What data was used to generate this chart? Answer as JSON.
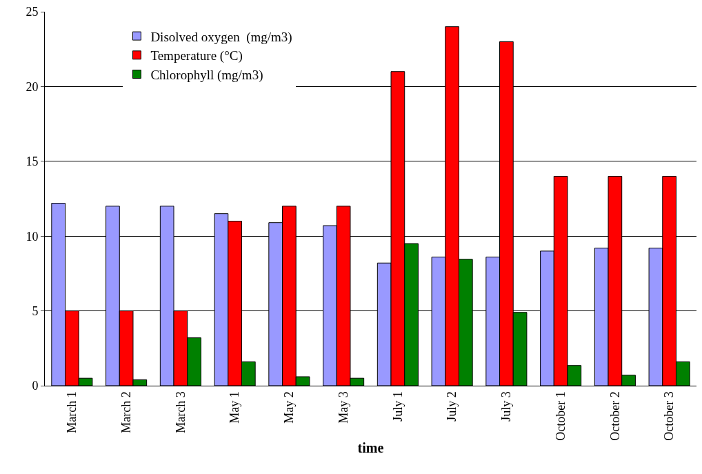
{
  "chart_data": {
    "type": "bar",
    "xlabel": "time",
    "categories": [
      "March 1",
      "March 2",
      "March 3",
      "May 1",
      "May 2",
      "May 3",
      "July 1",
      "July 2",
      "July 3",
      "October 1",
      "October 2",
      "October 3"
    ],
    "series": [
      {
        "name": "Disolved oxygen  (mg/m3)",
        "color": "#9999ff",
        "values": [
          12.2,
          12.0,
          12.0,
          11.5,
          10.9,
          10.7,
          8.2,
          8.6,
          8.6,
          9.0,
          9.2,
          9.2
        ]
      },
      {
        "name": "Temperature (°C)",
        "color": "#ff0000",
        "values": [
          5,
          5,
          5,
          11,
          12,
          12,
          21,
          24,
          23,
          14,
          14,
          14
        ]
      },
      {
        "name": "Chlorophyll (mg/m3)",
        "color": "#008000",
        "values": [
          0.5,
          0.4,
          3.2,
          1.6,
          0.6,
          0.5,
          9.5,
          8.45,
          4.9,
          1.35,
          0.7,
          1.6
        ]
      }
    ],
    "ylim": [
      0,
      25
    ],
    "yticks": [
      0,
      5,
      10,
      15,
      20,
      25
    ],
    "grid": "y",
    "legend": "top left"
  }
}
